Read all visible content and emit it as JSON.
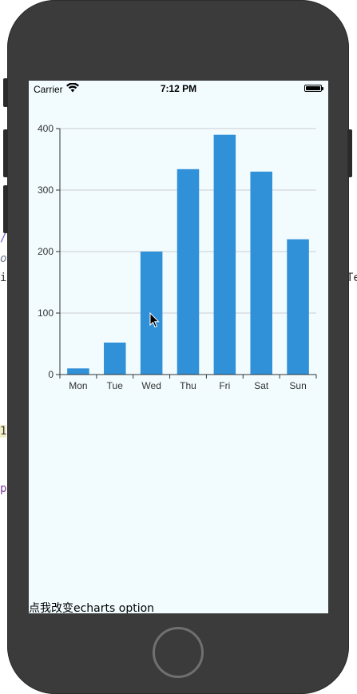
{
  "editor_fragments": {
    "frag_1": "/",
    "frag_2": "or",
    "frag_3": "i",
    "frag_4": "Te",
    "frag_5": "1",
    "frag_6": "p"
  },
  "status_bar": {
    "carrier": "Carrier",
    "time": "7:12 PM",
    "wifi_icon": "wifi-icon",
    "battery_icon": "battery-icon"
  },
  "chart_data": {
    "type": "bar",
    "categories": [
      "Mon",
      "Tue",
      "Wed",
      "Thu",
      "Fri",
      "Sat",
      "Sun"
    ],
    "values": [
      10,
      52,
      200,
      334,
      390,
      330,
      220
    ],
    "title": "",
    "xlabel": "",
    "ylabel": "",
    "ylim": [
      0,
      400
    ],
    "yticks": [
      0,
      100,
      200,
      300,
      400
    ],
    "grid": true,
    "bar_color": "#3090d8"
  },
  "bottom_button": {
    "label": "点我改变echarts option"
  },
  "colors": {
    "device_frame": "#3b3b3b",
    "screen_bg": "#f2fcff",
    "bar": "#3090d8",
    "grid": "#cccccc",
    "axis": "#333333"
  }
}
